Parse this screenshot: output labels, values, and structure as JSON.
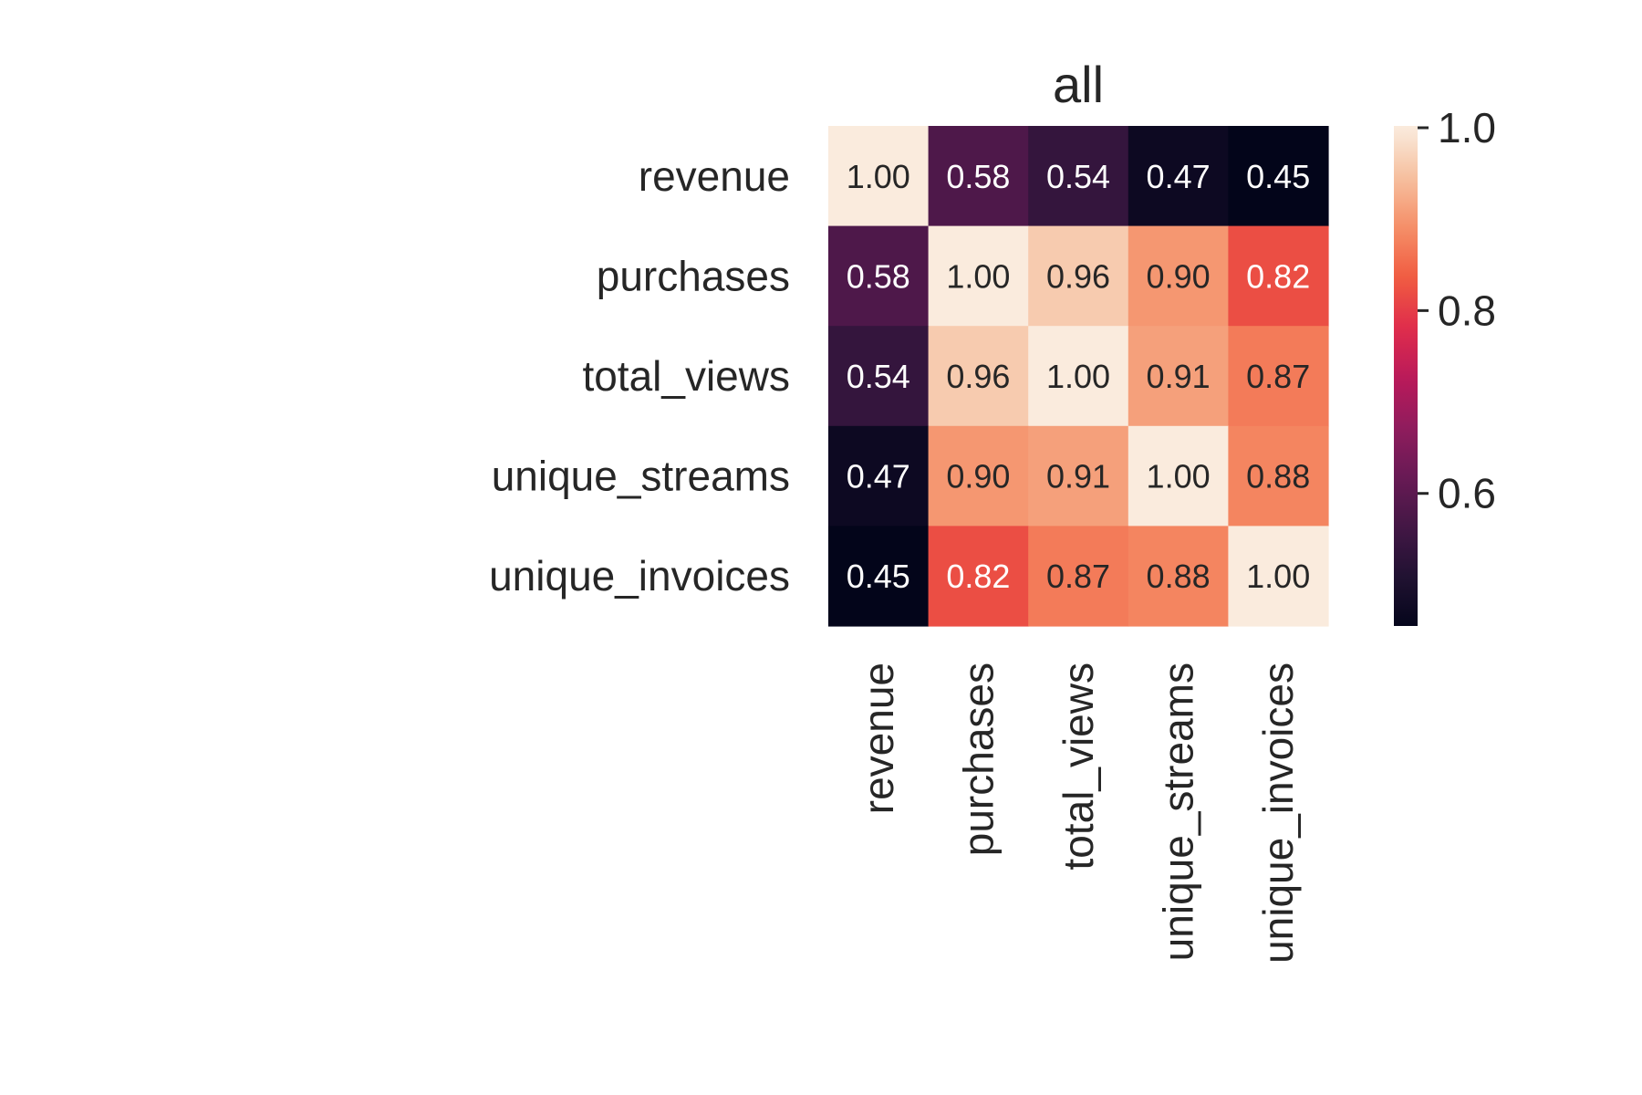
{
  "chart_data": {
    "type": "heatmap",
    "title": "all",
    "rows": [
      "revenue",
      "purchases",
      "total_views",
      "unique_streams",
      "unique_invoices"
    ],
    "columns": [
      "revenue",
      "purchases",
      "total_views",
      "unique_streams",
      "unique_invoices"
    ],
    "values": [
      [
        1.0,
        0.58,
        0.54,
        0.47,
        0.45
      ],
      [
        0.58,
        1.0,
        0.96,
        0.9,
        0.82
      ],
      [
        0.54,
        0.96,
        1.0,
        0.91,
        0.87
      ],
      [
        0.47,
        0.9,
        0.91,
        1.0,
        0.88
      ],
      [
        0.45,
        0.82,
        0.87,
        0.88,
        1.0
      ]
    ],
    "value_format": "2 decimals",
    "colormap": "rocket",
    "colorbar": {
      "min": 0.45,
      "max": 1.0,
      "ticks": [
        0.6,
        0.8,
        1.0
      ],
      "tick_labels": [
        "0.6",
        "0.8",
        "1.0"
      ]
    }
  }
}
